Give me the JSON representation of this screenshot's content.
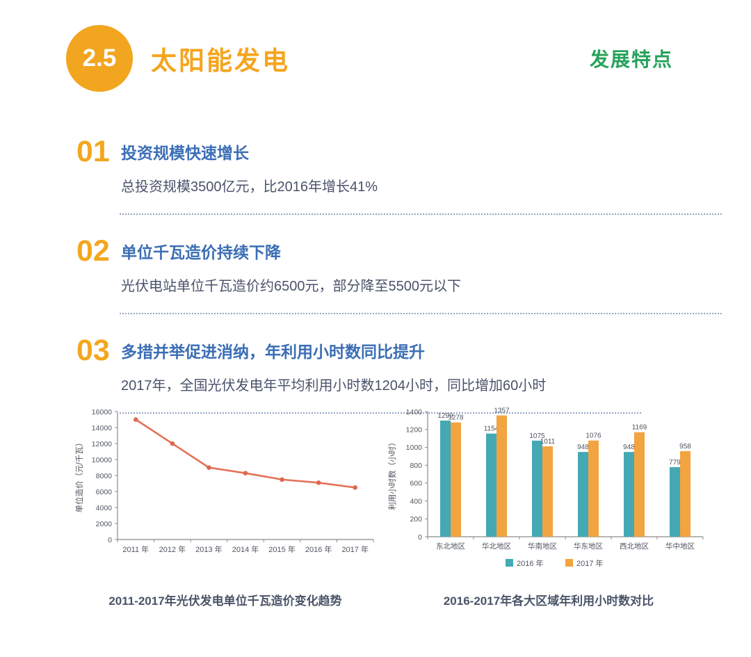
{
  "header": {
    "badge": "2.5",
    "title": "太阳能发电",
    "right_label": "发展特点"
  },
  "colors": {
    "accent_orange": "#F2A51F",
    "title_orange": "#F6A41D",
    "green": "#27A25B",
    "heading_blue": "#3B6EB5",
    "body_text": "#49526A",
    "line_series": "#E5715A",
    "line_marker": "#DC6A4F",
    "bar_2016": "#44A9B5",
    "bar_2017": "#F2A440",
    "axis": "#8b8b8b",
    "tick_text": "#50555F"
  },
  "features": [
    {
      "number": "01",
      "title": "投资规模快速增长",
      "desc": "总投资规模3500亿元，比2016年增长41%"
    },
    {
      "number": "02",
      "title": "单位千瓦造价持续下降",
      "desc": "光伏电站单位千瓦造价约6500元，部分降至5500元以下"
    },
    {
      "number": "03",
      "title": "多措并举促进消纳，年利用小时数同比提升",
      "desc": "2017年，全国光伏发电年平均利用小时数1204小时，同比增加60小时"
    }
  ],
  "chart_data": [
    {
      "type": "line",
      "title": "2011-2017年光伏发电单位千瓦造价变化趋势",
      "ylabel": "单位造价（元/千瓦）",
      "categories": [
        "2011 年",
        "2012 年",
        "2013 年",
        "2014 年",
        "2015 年",
        "2016 年",
        "2017 年"
      ],
      "values": [
        15000,
        12000,
        9000,
        8300,
        7500,
        7100,
        6500
      ],
      "ylim": [
        0,
        16000
      ],
      "ytick_step": 2000,
      "grid": false,
      "line_color": "#E5715A",
      "marker_color": "#DC6A4F"
    },
    {
      "type": "bar",
      "title": "2016-2017年各大区域年利用小时数对比",
      "ylabel": "利用小时数（小时）",
      "categories": [
        "东北地区",
        "华北地区",
        "华南地区",
        "华东地区",
        "西北地区",
        "华中地区"
      ],
      "series": [
        {
          "name": "2016 年",
          "color": "#44A9B5",
          "values": [
            1299,
            1154,
            1075,
            948,
            948,
            779
          ]
        },
        {
          "name": "2017 年",
          "color": "#F2A440",
          "values": [
            1278,
            1357,
            1011,
            1076,
            1169,
            958
          ]
        }
      ],
      "ylim": [
        0,
        1400
      ],
      "ytick_step": 200,
      "grid": false,
      "legend_position": "bottom"
    }
  ]
}
